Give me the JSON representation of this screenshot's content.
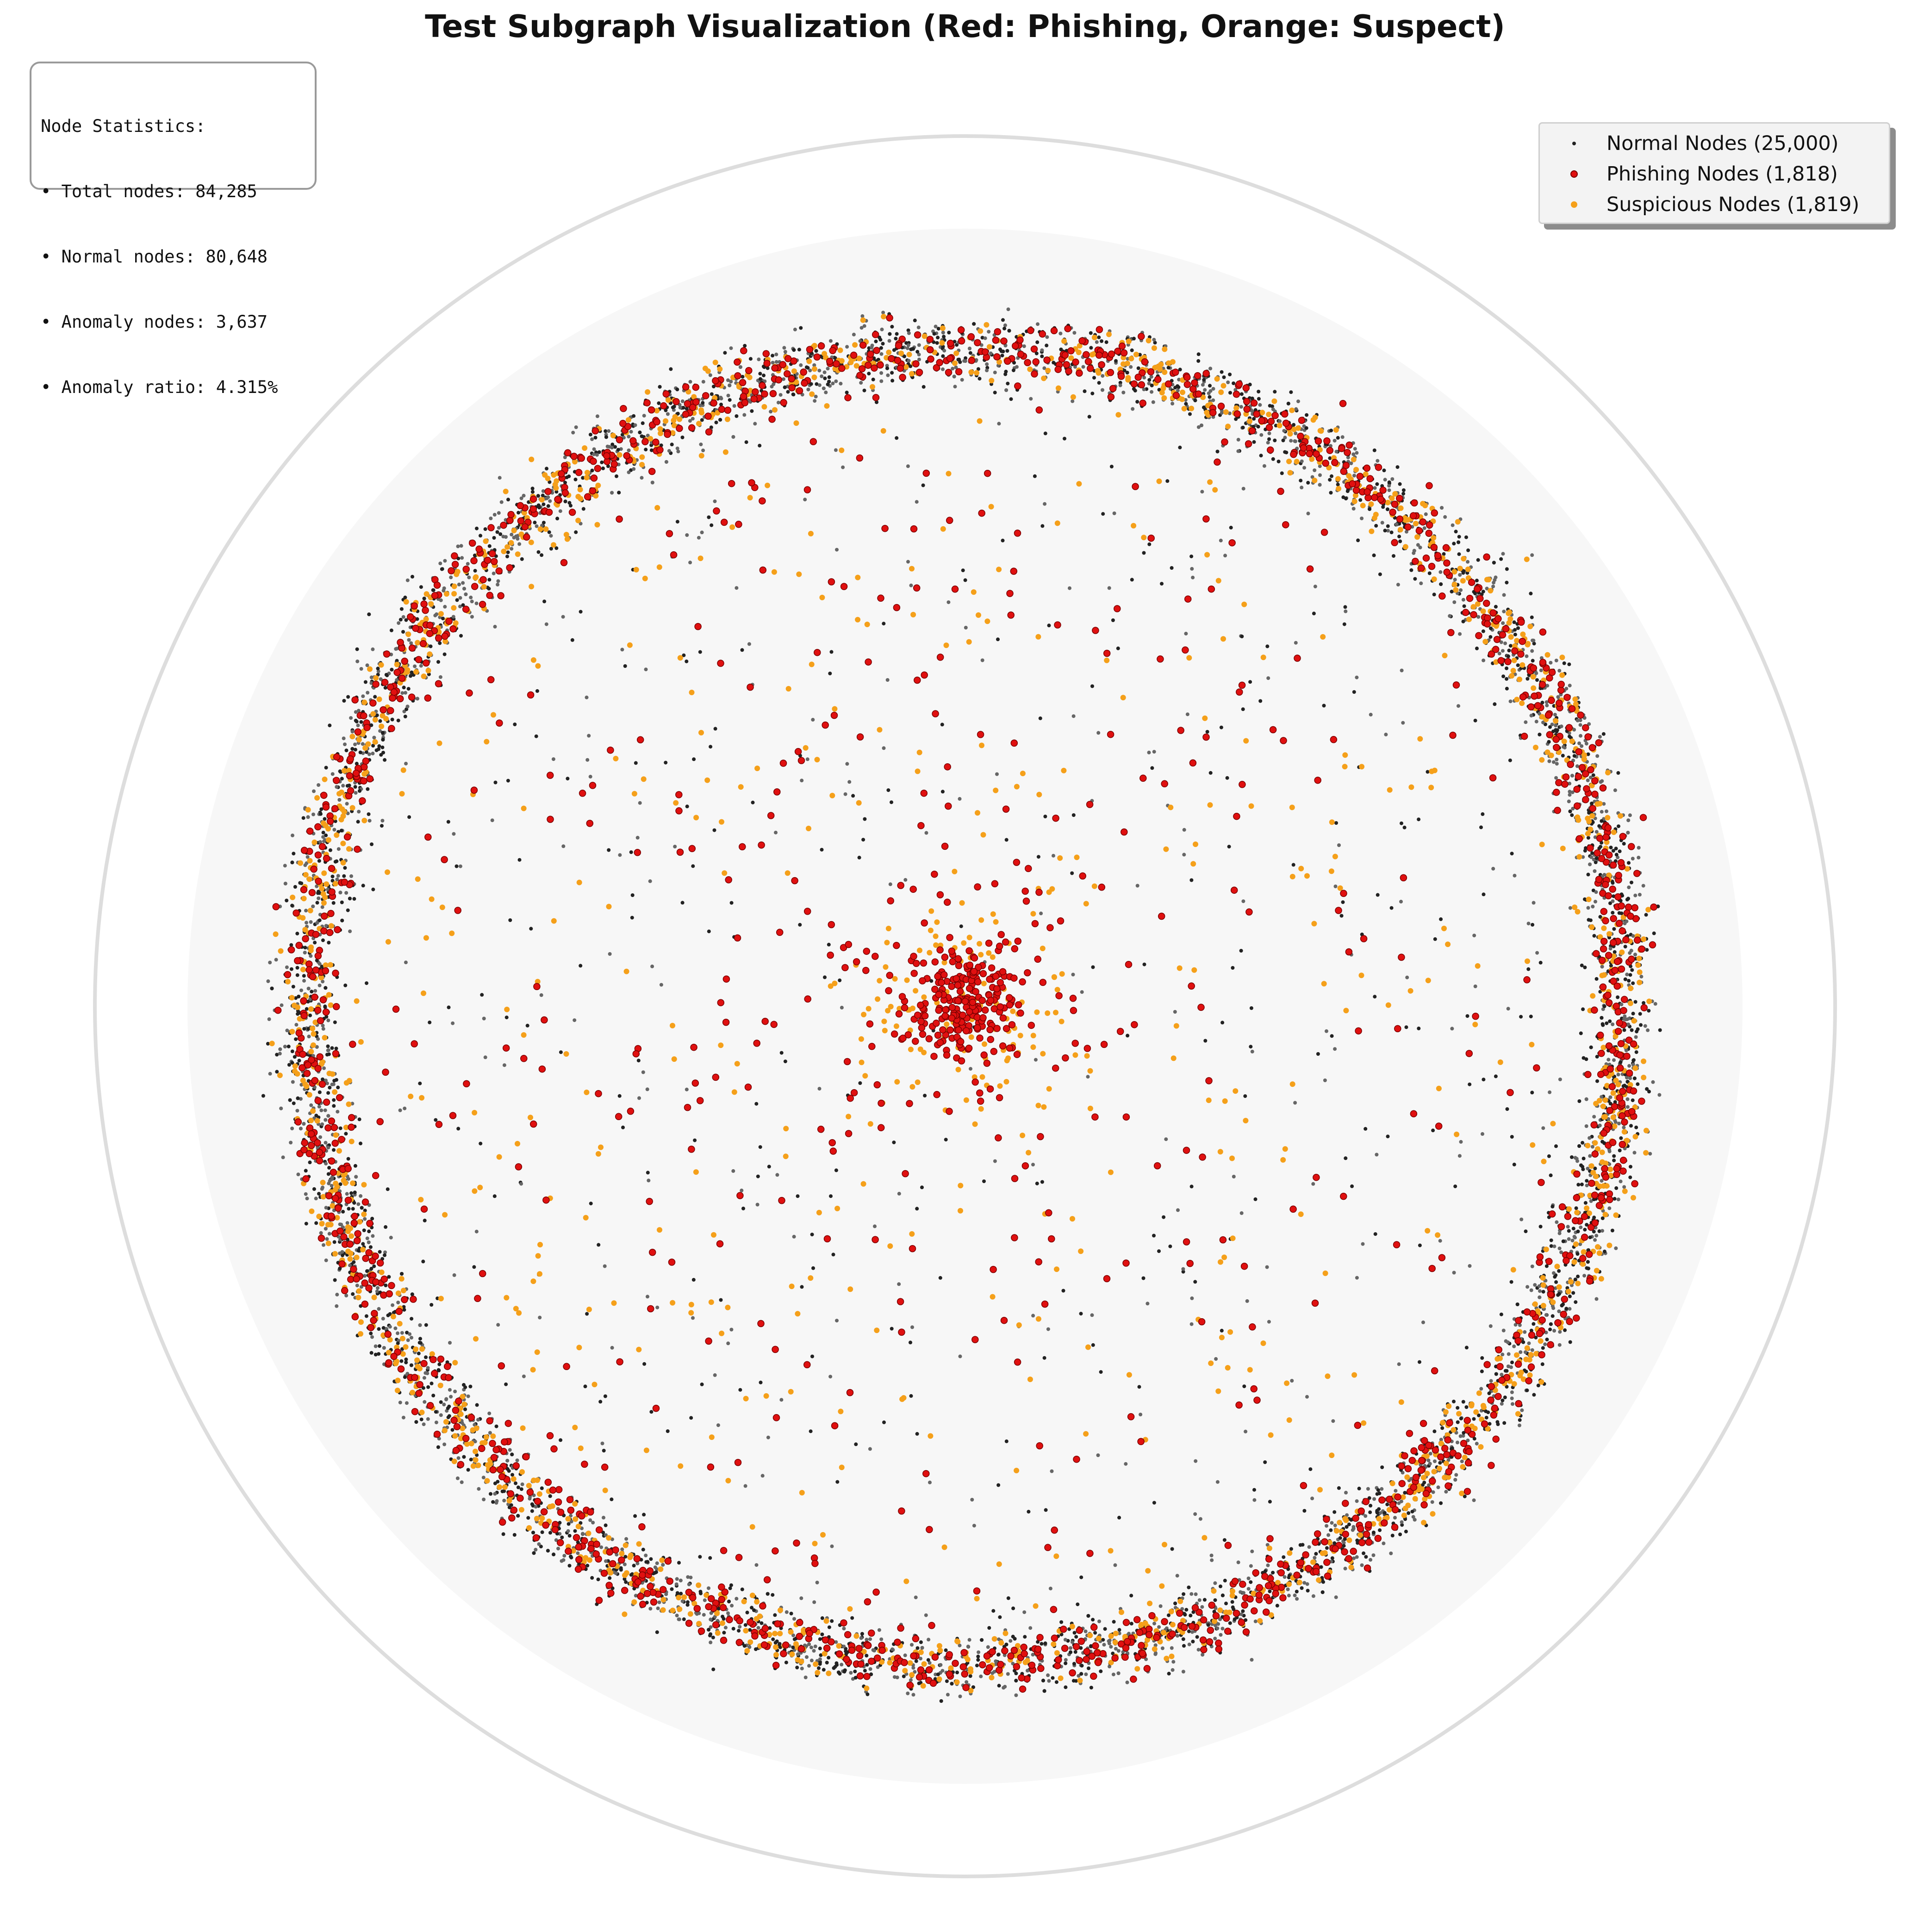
{
  "chart_data": {
    "type": "scatter",
    "title": "Test Subgraph Visualization (Red: Phishing, Orange: Suspect)",
    "layout": "radial",
    "colors": {
      "normal": "#222222",
      "normal_alt": "#666666",
      "phishing": "#e01010",
      "phishing_edge": "#7a0000",
      "suspicious": "#f5a01a",
      "background_disk": "#f7f7f7",
      "outer_ring": "#dddddd"
    },
    "series": [
      {
        "name": "Normal Nodes (25,000)",
        "key": "normal",
        "count": 25000
      },
      {
        "name": "Phishing Nodes (1,818)",
        "key": "phishing",
        "count": 1818
      },
      {
        "name": "Suspicious Nodes (1,819)",
        "key": "suspicious",
        "count": 1819
      }
    ],
    "legend_placement": "top-right",
    "grid": false,
    "axes_visible": false
  },
  "stats": {
    "heading": "Node Statistics:",
    "total": "• Total nodes: 84,285",
    "normal": "• Normal nodes: 80,648",
    "anomaly": "• Anomaly nodes: 3,637",
    "ratio": "• Anomaly ratio: 4.315%"
  }
}
